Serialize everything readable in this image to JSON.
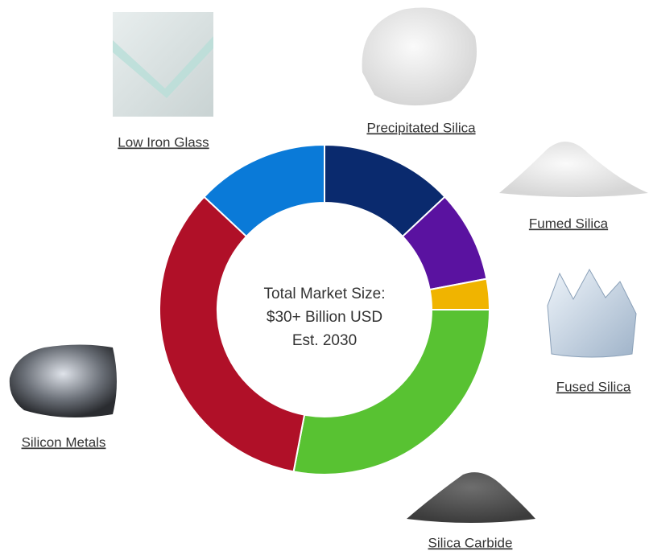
{
  "chart_data": {
    "type": "donut",
    "categories": [
      "Precipitated Silica",
      "Fumed Silica",
      "Fused Silica",
      "Silica Carbide",
      "Silicon Metals",
      "Low Iron Glass"
    ],
    "values": [
      13,
      9,
      3,
      28,
      34,
      13
    ],
    "colors": [
      "#0a2a6e",
      "#5a12a0",
      "#f0b400",
      "#58c232",
      "#b01028",
      "#0a7ad8"
    ],
    "center_text": [
      "Total Market Size:",
      "$30+ Billion USD",
      "Est. 2030"
    ]
  }
}
